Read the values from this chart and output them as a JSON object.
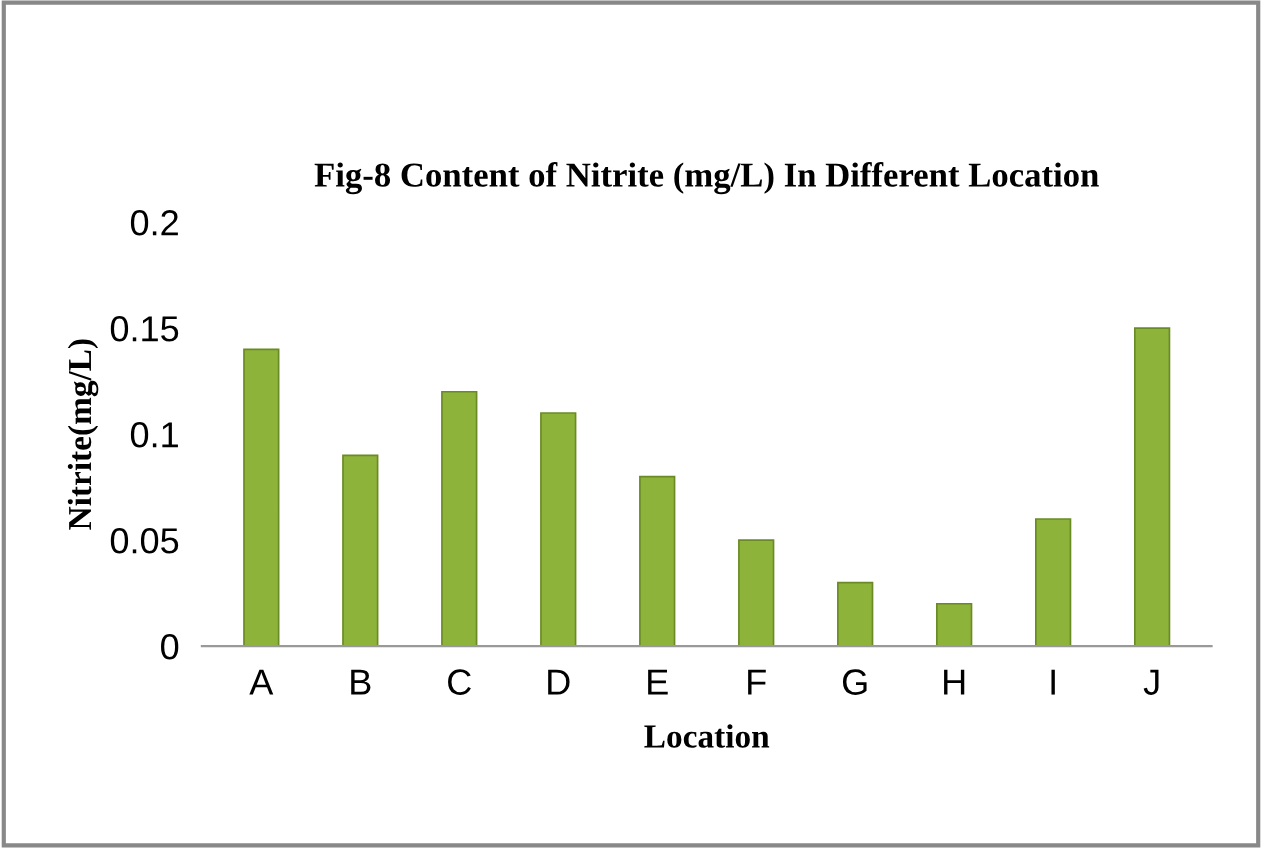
{
  "chart_data": {
    "type": "bar",
    "title": "Fig-8 Content of Nitrite (mg/L) In Different Location",
    "xlabel": "Location",
    "ylabel": "Nitrite(mg/L)",
    "categories": [
      "A",
      "B",
      "C",
      "D",
      "E",
      "F",
      "G",
      "H",
      "I",
      "J"
    ],
    "values": [
      0.14,
      0.09,
      0.12,
      0.11,
      0.08,
      0.05,
      0.03,
      0.02,
      0.06,
      0.15
    ],
    "color": "#8db33a",
    "ylim": [
      0,
      0.2
    ],
    "yticks": [
      0,
      0.05,
      0.1,
      0.15,
      0.2
    ],
    "grid": false
  }
}
